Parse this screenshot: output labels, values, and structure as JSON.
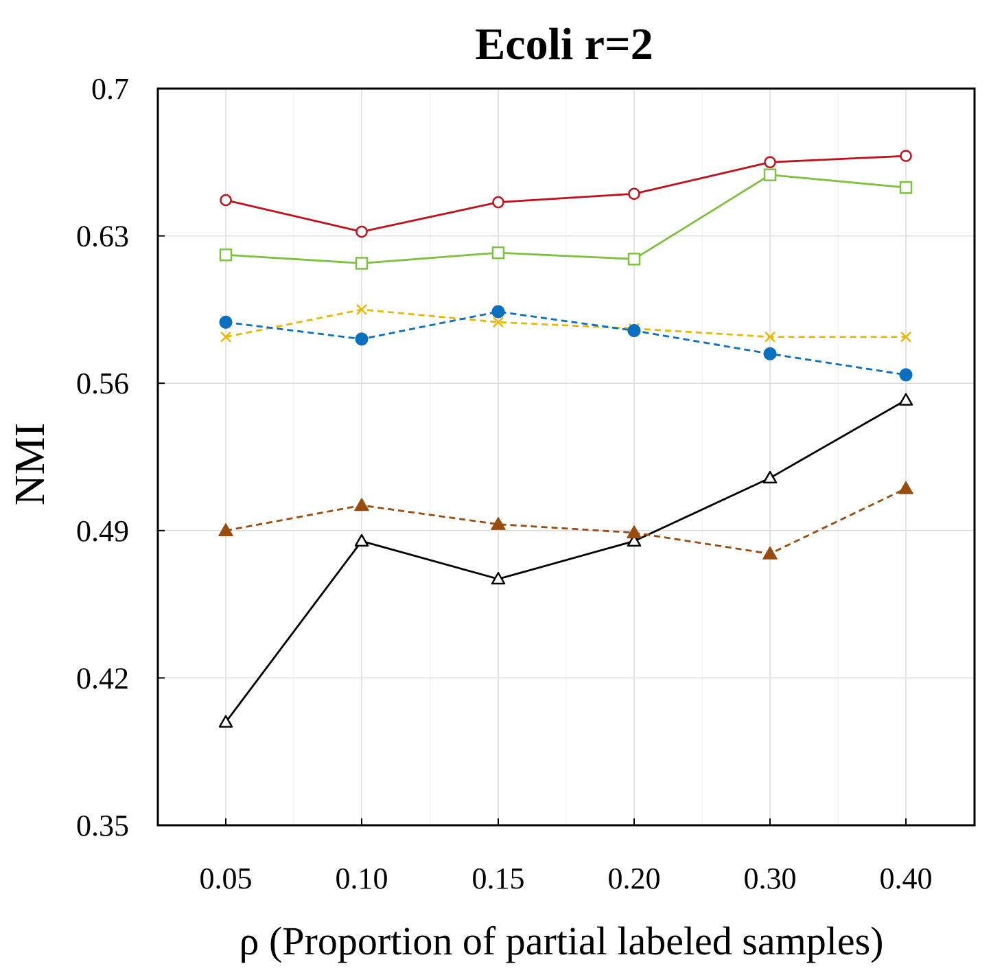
{
  "chart_data": {
    "type": "line",
    "title": "Ecoli r=2",
    "xlabel": "ρ (Proportion of partial labeled samples)",
    "ylabel": "NMI",
    "categories": [
      "0.05",
      "0.10",
      "0.15",
      "0.20",
      "0.30",
      "0.40"
    ],
    "ylim": [
      0.35,
      0.7
    ],
    "yticks": [
      "0.35",
      "0.42",
      "0.49",
      "0.56",
      "0.63",
      "0.7"
    ],
    "ytick_values": [
      0.35,
      0.42,
      0.49,
      0.56,
      0.63,
      0.7
    ],
    "grid": true,
    "series": [
      {
        "name": "red-circle-series",
        "color": "#c0111b",
        "marker": "circle-open",
        "dashed": false,
        "values": [
          0.647,
          0.632,
          0.646,
          0.65,
          0.665,
          0.668
        ]
      },
      {
        "name": "green-square-series",
        "color": "#7dc13f",
        "marker": "square-open",
        "dashed": false,
        "values": [
          0.621,
          0.617,
          0.622,
          0.619,
          0.659,
          0.653
        ]
      },
      {
        "name": "yellow-x-series",
        "color": "#e8b800",
        "marker": "x",
        "dashed": true,
        "values": [
          0.582,
          0.595,
          0.589,
          0.586,
          0.582,
          0.582
        ]
      },
      {
        "name": "blue-dot-series",
        "color": "#0a6fc0",
        "marker": "circle-filled",
        "dashed": true,
        "values": [
          0.589,
          0.581,
          0.594,
          0.585,
          0.574,
          0.564
        ]
      },
      {
        "name": "black-triangle-series",
        "color": "#000000",
        "marker": "triangle-open",
        "dashed": false,
        "values": [
          0.399,
          0.485,
          0.467,
          0.485,
          0.515,
          0.552
        ]
      },
      {
        "name": "brown-triangle-series",
        "color": "#9a4c0f",
        "marker": "triangle-filled",
        "dashed": true,
        "values": [
          0.49,
          0.502,
          0.493,
          0.489,
          0.479,
          0.51
        ]
      }
    ]
  }
}
